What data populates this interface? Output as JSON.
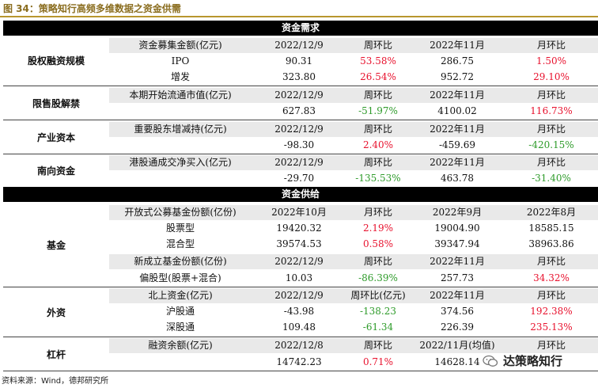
{
  "figure_title": "图 34：策略知行高频多维数据之资金供需",
  "sections": {
    "demand": "资金需求",
    "supply": "资金供给"
  },
  "groups": {
    "equity_financing": "股权融资规模",
    "restricted_unlock": "限售股解禁",
    "industrial_capital": "产业资本",
    "southbound": "南向资金",
    "funds": "基金",
    "foreign": "外资",
    "leverage": "杠杆"
  },
  "rows": {
    "ef_h": [
      "资金募集金额(亿元)",
      "2022/12/9",
      "周环比",
      "2022年11月",
      "月环比"
    ],
    "ef_ipo": [
      "IPO",
      "90.31",
      "53.58%",
      "286.75",
      "1.50%"
    ],
    "ef_add": [
      "增发",
      "323.80",
      "26.54%",
      "952.72",
      "29.10%"
    ],
    "ru_h": [
      "本期开始流通市值(亿元)",
      "2022/12/9",
      "周环比",
      "2022年11月",
      "月环比"
    ],
    "ru_v": [
      "",
      "627.83",
      "-51.97%",
      "4100.02",
      "116.73%"
    ],
    "ic_h": [
      "重要股东增减持(亿元)",
      "2022/12/9",
      "周环比",
      "2022年11月",
      "月环比"
    ],
    "ic_v": [
      "",
      "-98.30",
      "2.40%",
      "-459.69",
      "-420.15%"
    ],
    "sb_h": [
      "港股通成交净买入(亿元)",
      "2022/12/9",
      "周环比",
      "2022年11月",
      "月环比"
    ],
    "sb_v": [
      "",
      "-29.70",
      "-135.53%",
      "463.78",
      "-31.40%"
    ],
    "fd_h1": [
      "开放式公募基金份额(亿份)",
      "2022年10月",
      "月环比",
      "2022年9月",
      "2022年8月"
    ],
    "fd_stock": [
      "股票型",
      "19420.32",
      "2.19%",
      "19004.90",
      "18585.15"
    ],
    "fd_mixed": [
      "混合型",
      "39574.53",
      "0.58%",
      "39347.94",
      "38963.86"
    ],
    "fd_h2": [
      "新成立基金份额(亿份)",
      "2022/12/9",
      "周环比",
      "2022年11月",
      "月环比"
    ],
    "fd_new": [
      "偏股型(股票+混合)",
      "10.03",
      "-86.39%",
      "257.73",
      "34.32%"
    ],
    "fx_h": [
      "北上资金(亿元)",
      "2022/12/9",
      "周环比(亿元)",
      "2022年11月",
      "月环比"
    ],
    "fx_sh": [
      "沪股通",
      "-43.98",
      "-138.23",
      "374.56",
      "192.38%"
    ],
    "fx_sz": [
      "深股通",
      "109.48",
      "-61.34",
      "226.39",
      "235.13%"
    ],
    "lv_h": [
      "融资余额(亿元)",
      "2022/12/8",
      "周环比",
      "2022/11月(均值)",
      "月环比"
    ],
    "lv_v": [
      "",
      "14742.23",
      "0.71%",
      "14628.14",
      ""
    ]
  },
  "source": "资料来源：Wind，德邦研究所",
  "watermark": "达策略知行",
  "colors": {
    "positive": "#e8112d",
    "negative": "#2e9b2a",
    "accent": "#b8962e"
  }
}
